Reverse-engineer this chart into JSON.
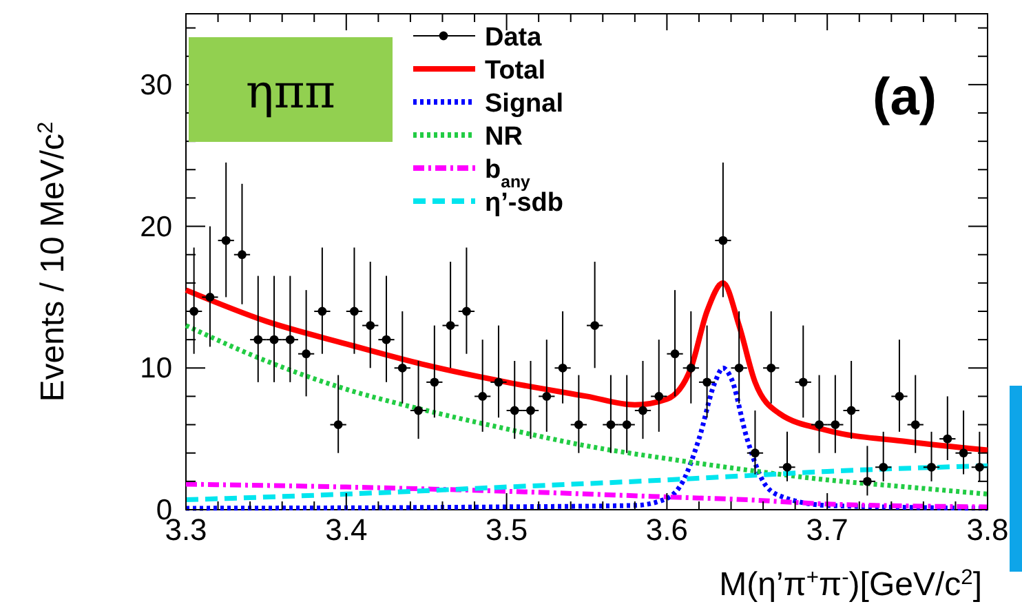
{
  "chart_data": {
    "type": "scatter",
    "xlabel": "M(η’π$^{+}$π$^{-}$)[GeV/c$^{2}$]",
    "ylabel": "Events / 10 MeV/c$^{2}$",
    "annotations": [
      "ηππ",
      "(a)"
    ],
    "xlim": [
      3.3,
      3.8
    ],
    "ylim": [
      0,
      35
    ],
    "xticks": [
      3.3,
      3.4,
      3.5,
      3.6,
      3.7,
      3.8
    ],
    "yticks": [
      0,
      10,
      20,
      30
    ],
    "legend": "top",
    "grid": false,
    "series": [
      {
        "name": "Data",
        "marker": "circle",
        "color": "#000000",
        "x": [
          3.305,
          3.315,
          3.325,
          3.335,
          3.345,
          3.355,
          3.365,
          3.375,
          3.385,
          3.395,
          3.405,
          3.415,
          3.425,
          3.435,
          3.445,
          3.455,
          3.465,
          3.475,
          3.485,
          3.495,
          3.505,
          3.515,
          3.525,
          3.535,
          3.545,
          3.555,
          3.565,
          3.575,
          3.585,
          3.595,
          3.605,
          3.615,
          3.625,
          3.635,
          3.645,
          3.655,
          3.665,
          3.675,
          3.685,
          3.695,
          3.705,
          3.715,
          3.725,
          3.735,
          3.745,
          3.755,
          3.765,
          3.775,
          3.785,
          3.795
        ],
        "values": [
          14,
          15,
          19,
          18,
          12,
          12,
          12,
          11,
          14,
          6,
          14,
          13,
          12,
          10,
          7,
          9,
          13,
          14,
          8,
          9,
          7,
          7,
          8,
          10,
          6,
          13,
          6,
          6,
          7,
          8,
          11,
          10,
          9,
          19,
          10,
          4,
          10,
          3,
          9,
          6,
          6,
          7,
          2,
          3,
          8,
          6,
          3,
          5,
          4,
          3
        ],
        "errors": [
          [
            11,
            18.5
          ],
          [
            11.5,
            20
          ],
          [
            15,
            24.5
          ],
          [
            14.5,
            23
          ],
          [
            9,
            16.5
          ],
          [
            9,
            16.5
          ],
          [
            9,
            16.5
          ],
          [
            8,
            15.5
          ],
          [
            11,
            18.5
          ],
          [
            4,
            9.5
          ],
          [
            11,
            18.5
          ],
          [
            10,
            17.5
          ],
          [
            9,
            16.5
          ],
          [
            7.5,
            14
          ],
          [
            5,
            10.5
          ],
          [
            6.5,
            13
          ],
          [
            10,
            17.5
          ],
          [
            11,
            18.5
          ],
          [
            5.5,
            12
          ],
          [
            6.5,
            13
          ],
          [
            5,
            10.5
          ],
          [
            5,
            10.5
          ],
          [
            5.5,
            12
          ],
          [
            7.5,
            14
          ],
          [
            4,
            9.5
          ],
          [
            10,
            17.5
          ],
          [
            4,
            9.5
          ],
          [
            4,
            9.5
          ],
          [
            5,
            10.5
          ],
          [
            5.5,
            12
          ],
          [
            8,
            15.5
          ],
          [
            7.5,
            14
          ],
          [
            6.5,
            13
          ],
          [
            15,
            24.5
          ],
          [
            7.5,
            14
          ],
          [
            2.5,
            7
          ],
          [
            7.5,
            14
          ],
          [
            2,
            5.5
          ],
          [
            6.5,
            13
          ],
          [
            4,
            9.5
          ],
          [
            4,
            9.5
          ],
          [
            5,
            10.5
          ],
          [
            1,
            4.5
          ],
          [
            2,
            5.5
          ],
          [
            5.5,
            12
          ],
          [
            4,
            9.5
          ],
          [
            2,
            5.5
          ],
          [
            3.5,
            8
          ],
          [
            2.5,
            7
          ],
          [
            2,
            5.5
          ]
        ],
        "xerrors": [
          0.005,
          0.005,
          0.005,
          0.005,
          0.005,
          0.005,
          0.005,
          0.005,
          0.005,
          0.005,
          0.005,
          0.005,
          0.005,
          0.005,
          0.005,
          0.005,
          0.005,
          0.005,
          0.005,
          0.005,
          0.005,
          0.005,
          0.005,
          0.005,
          0.005,
          0.005,
          0.005,
          0.005,
          0.005,
          0.005,
          0.005,
          0.005,
          0.005,
          0.005,
          0.005,
          0.005,
          0.005,
          0.005,
          0.005,
          0.005,
          0.005,
          0.005,
          0.005,
          0.005,
          0.005,
          0.005,
          0.005,
          0.005,
          0.005,
          0.005
        ]
      },
      {
        "name": "Total",
        "type": "line",
        "line_style": "solid",
        "color": "#ff0000",
        "x": [
          3.3,
          3.35,
          3.4,
          3.45,
          3.5,
          3.55,
          3.58,
          3.6,
          3.615,
          3.625,
          3.635,
          3.645,
          3.655,
          3.67,
          3.7,
          3.75,
          3.8
        ],
        "values": [
          15.5,
          13.3,
          11.7,
          10.2,
          9,
          8,
          7.4,
          7.8,
          10,
          14,
          16,
          13,
          9,
          6.8,
          5.6,
          4.8,
          4.2
        ]
      },
      {
        "name": "Signal",
        "type": "line",
        "line_style": "dotted",
        "color": "#0000ff",
        "x": [
          3.3,
          3.5,
          3.58,
          3.6,
          3.61,
          3.62,
          3.63,
          3.635,
          3.64,
          3.65,
          3.66,
          3.67,
          3.7,
          3.8
        ],
        "values": [
          0.1,
          0.2,
          0.3,
          0.8,
          2,
          5,
          9,
          10,
          9.3,
          5,
          2,
          1,
          0.3,
          0.1
        ]
      },
      {
        "name": "NR",
        "type": "line",
        "line_style": "dotted",
        "color": "#22cc44",
        "x": [
          3.3,
          3.35,
          3.4,
          3.45,
          3.5,
          3.55,
          3.6,
          3.65,
          3.7,
          3.75,
          3.8
        ],
        "values": [
          13,
          10.5,
          8.5,
          7,
          5.7,
          4.5,
          3.6,
          2.8,
          2.1,
          1.6,
          1.1
        ]
      },
      {
        "name": "b$_{any}$",
        "type": "line",
        "line_style": "dashdot",
        "color": "#ff00ff",
        "x": [
          3.3,
          3.4,
          3.5,
          3.6,
          3.65,
          3.7,
          3.8
        ],
        "values": [
          1.8,
          1.6,
          1.3,
          0.9,
          0.7,
          0.4,
          0.2
        ]
      },
      {
        "name": "η’-sdb",
        "type": "line",
        "line_style": "dashed",
        "color": "#00e5ee",
        "x": [
          3.3,
          3.4,
          3.5,
          3.6,
          3.65,
          3.7,
          3.8
        ],
        "values": [
          0.7,
          1.1,
          1.6,
          2.1,
          2.4,
          2.7,
          3.1
        ]
      }
    ]
  }
}
